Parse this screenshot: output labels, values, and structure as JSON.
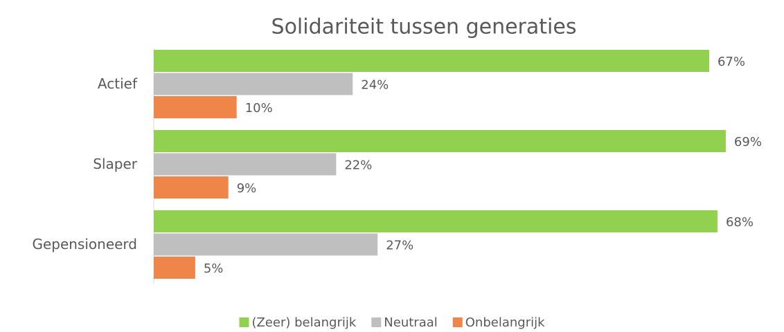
{
  "chart_data": {
    "type": "bar",
    "orientation": "horizontal",
    "title": "Solidariteit tussen generaties",
    "categories": [
      "Actief",
      "Slaper",
      "Gepensioneerd"
    ],
    "series": [
      {
        "name": "(Zeer) belangrijk",
        "color": "#92d050",
        "values": [
          67,
          69,
          68
        ],
        "value_labels": [
          "67%",
          "69%",
          "68%"
        ]
      },
      {
        "name": "Neutraal",
        "color": "#bfbfbf",
        "values": [
          24,
          22,
          27
        ],
        "value_labels": [
          "24%",
          "22%",
          "27%"
        ]
      },
      {
        "name": "Onbelangrijk",
        "color": "#f0854a",
        "values": [
          10,
          9,
          5
        ],
        "value_labels": [
          "10%",
          "9%",
          "5%"
        ]
      }
    ],
    "legend": "bottom"
  }
}
